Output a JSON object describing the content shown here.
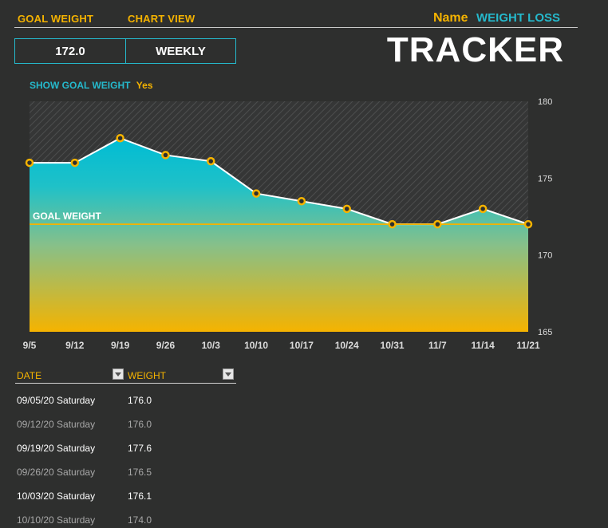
{
  "header": {
    "goal_weight_label": "GOAL WEIGHT",
    "chart_view_label": "CHART VIEW",
    "goal_weight_value": "172.0",
    "chart_view_value": "WEEKLY",
    "name_label": "Name",
    "name_value": "WEIGHT LOSS",
    "title": "TRACKER"
  },
  "show_goal": {
    "label": "SHOW GOAL WEIGHT",
    "value": "Yes"
  },
  "colors": {
    "accent_orange": "#f5b300",
    "accent_teal": "#25b9cc",
    "background": "#2e2f2e"
  },
  "chart_data": {
    "type": "area",
    "categories": [
      "9/5",
      "9/12",
      "9/19",
      "9/26",
      "10/3",
      "10/10",
      "10/17",
      "10/24",
      "10/31",
      "11/7",
      "11/14",
      "11/21"
    ],
    "series": [
      {
        "values": [
          176.0,
          176.0,
          177.6,
          176.5,
          176.1,
          174.0,
          173.5,
          173.0,
          172.0,
          172.0,
          173.0,
          172.0
        ]
      }
    ],
    "goal": {
      "label": "GOAL WEIGHT",
      "value": 172.0
    },
    "ylim": [
      165,
      180
    ],
    "yticks": [
      "180",
      "175",
      "170",
      "165"
    ],
    "grid": false,
    "yaxis_position": "right"
  },
  "table": {
    "columns": [
      "DATE",
      "WEIGHT"
    ],
    "rows": [
      {
        "date": "09/05/20 Saturday",
        "weight": "176.0"
      },
      {
        "date": "09/12/20 Saturday",
        "weight": "176.0"
      },
      {
        "date": "09/19/20 Saturday",
        "weight": "177.6"
      },
      {
        "date": "09/26/20 Saturday",
        "weight": "176.5"
      },
      {
        "date": "10/03/20 Saturday",
        "weight": "176.1"
      },
      {
        "date": "10/10/20 Saturday",
        "weight": "174.0"
      }
    ]
  }
}
